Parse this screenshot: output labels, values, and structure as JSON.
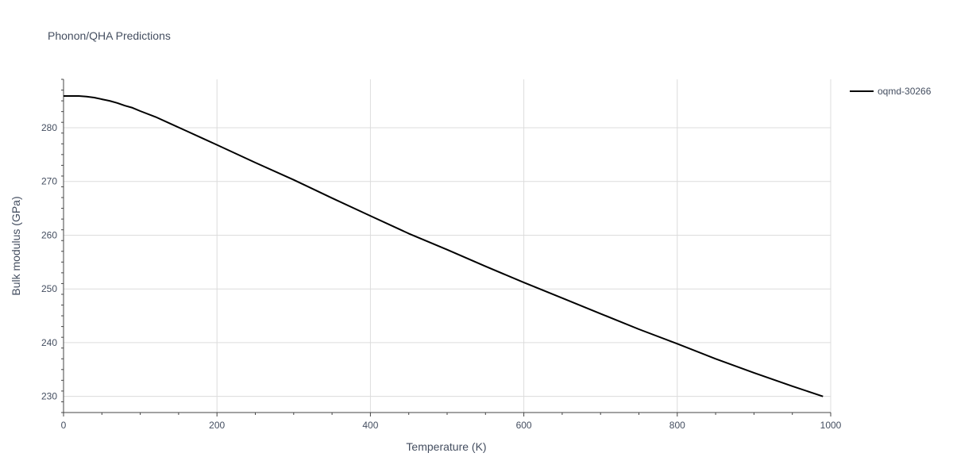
{
  "chart_data": {
    "type": "line",
    "title": "Phonon/QHA Predictions",
    "xlabel": "Temperature (K)",
    "ylabel": "Bulk modulus (GPa)",
    "xlim": [
      0,
      1000
    ],
    "ylim": [
      227,
      289
    ],
    "x_ticks": [
      0,
      200,
      400,
      600,
      800,
      1000
    ],
    "y_ticks": [
      230,
      240,
      250,
      260,
      270,
      280
    ],
    "grid": true,
    "legend_position": "top-right",
    "series": [
      {
        "name": "oqmd-30266",
        "color": "#000000",
        "x": [
          0,
          10,
          20,
          30,
          40,
          50,
          60,
          70,
          80,
          90,
          100,
          120,
          140,
          160,
          180,
          200,
          250,
          300,
          350,
          400,
          450,
          500,
          550,
          600,
          650,
          700,
          750,
          800,
          850,
          900,
          950,
          990
        ],
        "y": [
          285.9,
          285.9,
          285.9,
          285.8,
          285.6,
          285.3,
          285.0,
          284.6,
          284.1,
          283.7,
          283.1,
          282.0,
          280.7,
          279.4,
          278.1,
          276.8,
          273.5,
          270.3,
          266.9,
          263.6,
          260.3,
          257.3,
          254.2,
          251.2,
          248.3,
          245.4,
          242.5,
          239.8,
          237.0,
          234.4,
          231.9,
          230.0
        ]
      }
    ]
  }
}
